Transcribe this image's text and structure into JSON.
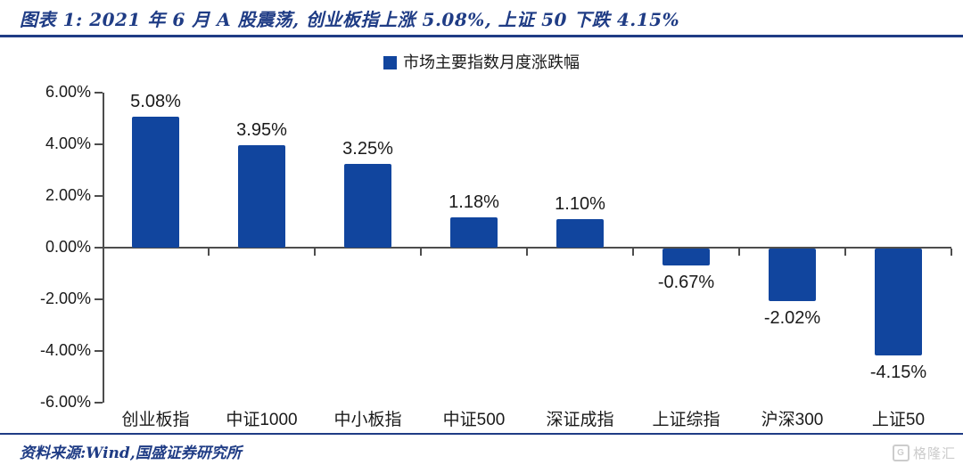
{
  "header": {
    "title": "图表 1:  2021 年 6 月 A 股震荡,  创业板指上涨 5.08%,  上证 50 下跌 4.15%"
  },
  "footer": {
    "source": "资料来源:Wind,国盛证券研究所",
    "watermark": "格隆汇",
    "watermark_icon": "G"
  },
  "chart_data": {
    "type": "bar",
    "legend": "市场主要指数月度涨跌幅",
    "legend_position": "top",
    "categories": [
      "创业板指",
      "中证1000",
      "中小板指",
      "中证500",
      "深证成指",
      "上证综指",
      "沪深300",
      "上证50"
    ],
    "values": [
      5.08,
      3.95,
      3.25,
      1.18,
      1.1,
      -0.67,
      -2.02,
      -4.15
    ],
    "value_labels": [
      "5.08%",
      "3.95%",
      "3.25%",
      "1.18%",
      "1.10%",
      "-0.67%",
      "-2.02%",
      "-4.15%"
    ],
    "y_ticks": [
      "6.00%",
      "4.00%",
      "2.00%",
      "0.00%",
      "-2.00%",
      "-4.00%",
      "-6.00%"
    ],
    "ylim": [
      -6,
      6
    ],
    "grid": false,
    "xlabel": "",
    "ylabel": "",
    "bar_color": "#11459e",
    "axis_color": "#4d4d4d",
    "title_color": "#1f3c85"
  }
}
